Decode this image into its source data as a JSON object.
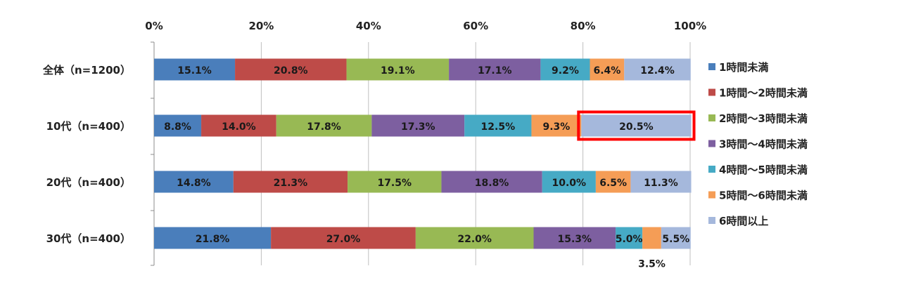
{
  "chart_data": {
    "type": "bar",
    "orientation": "horizontal",
    "stacked": true,
    "percent_stacked": true,
    "categories": [
      "全体（n=1200）",
      "10代（n=400）",
      "20代（n=400）",
      "30代（n=400）"
    ],
    "x_ticks": [
      "0%",
      "20%",
      "40%",
      "60%",
      "80%",
      "100%"
    ],
    "xlim": [
      0,
      100
    ],
    "grid": true,
    "legend_position": "right",
    "series": [
      {
        "name": "1時間未満",
        "color": "#4a7ebb",
        "values": [
          15.1,
          8.8,
          14.8,
          21.8
        ],
        "labels": [
          "15.1%",
          "8.8%",
          "14.8%",
          "21.8%"
        ]
      },
      {
        "name": "1時間～2時間未満",
        "color": "#be4b48",
        "values": [
          20.8,
          14.0,
          21.3,
          27.0
        ],
        "labels": [
          "20.8%",
          "14.0%",
          "21.3%",
          "27.0%"
        ]
      },
      {
        "name": "2時間～3時間未満",
        "color": "#98b954",
        "values": [
          19.1,
          17.8,
          17.5,
          22.0
        ],
        "labels": [
          "19.1%",
          "17.8%",
          "17.5%",
          "22.0%"
        ]
      },
      {
        "name": "3時間～4時間未満",
        "color": "#7d5fa0",
        "values": [
          17.1,
          17.3,
          18.8,
          15.3
        ],
        "labels": [
          "17.1%",
          "17.3%",
          "18.8%",
          "15.3%"
        ]
      },
      {
        "name": "4時間～5時間未満",
        "color": "#46aac5",
        "values": [
          9.2,
          12.5,
          10.0,
          5.0
        ],
        "labels": [
          "9.2%",
          "12.5%",
          "10.0%",
          "5.0%"
        ]
      },
      {
        "name": "5時間～6時間未満",
        "color": "#f59d56",
        "values": [
          6.4,
          9.3,
          6.5,
          3.5
        ],
        "labels": [
          "6.4%",
          "9.3%",
          "6.5%",
          "3.5%"
        ]
      },
      {
        "name": "6時間以上",
        "color": "#a5b8dc",
        "values": [
          12.4,
          20.5,
          11.3,
          5.5
        ],
        "labels": [
          "12.4%",
          "20.5%",
          "11.3%",
          "5.5%"
        ]
      }
    ],
    "highlight": {
      "category_index": 1,
      "series_index": 6,
      "color": "#ff0000"
    },
    "outside_labels": [
      {
        "category_index": 3,
        "series_index": 5
      }
    ]
  }
}
